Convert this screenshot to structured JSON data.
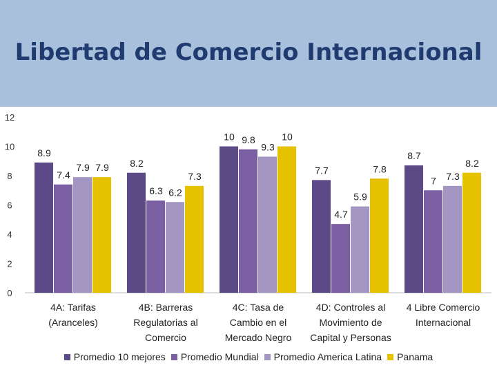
{
  "title": "Libertad de Comercio Internacional",
  "chart_data": {
    "type": "bar",
    "categories": [
      [
        "4A: Tarifas",
        "(Aranceles)"
      ],
      [
        "4B: Barreras",
        "Regulatorias al",
        "Comercio"
      ],
      [
        "4C: Tasa de",
        "Cambio en el",
        "Mercado Negro"
      ],
      [
        "4D: Controles al",
        "Movimiento de",
        "Capital y Personas"
      ],
      [
        "4 Libre Comercio",
        "Internacional"
      ]
    ],
    "series": [
      {
        "name": "Promedio 10 mejores",
        "color": "#5b4a86",
        "values": [
          8.9,
          8.2,
          10,
          7.7,
          8.7
        ],
        "labels": [
          "8.9",
          "8.2",
          "10",
          "7.7",
          "8.7"
        ]
      },
      {
        "name": "Promedio Mundial",
        "color": "#7a5fa3",
        "values": [
          7.4,
          6.3,
          9.8,
          4.7,
          7.0
        ],
        "labels": [
          "7.4",
          "6.3",
          "9.8",
          "4.7",
          "7"
        ]
      },
      {
        "name": "Promedio America Latina",
        "color": "#a396c3",
        "values": [
          7.9,
          6.2,
          9.3,
          5.9,
          7.3
        ],
        "labels": [
          "7.9",
          "6.2",
          "9.3",
          "5.9",
          "7.3"
        ]
      },
      {
        "name": "Panama",
        "color": "#e5c100",
        "values": [
          7.9,
          7.3,
          10,
          7.8,
          8.2
        ],
        "labels": [
          "7.9",
          "7.3",
          "10",
          "7.8",
          "8.2"
        ]
      }
    ],
    "yticks": [
      "0",
      "2",
      "4",
      "6",
      "8",
      "10",
      "12"
    ],
    "ylim": [
      0,
      12
    ],
    "grid": false,
    "legend": "bottom"
  }
}
